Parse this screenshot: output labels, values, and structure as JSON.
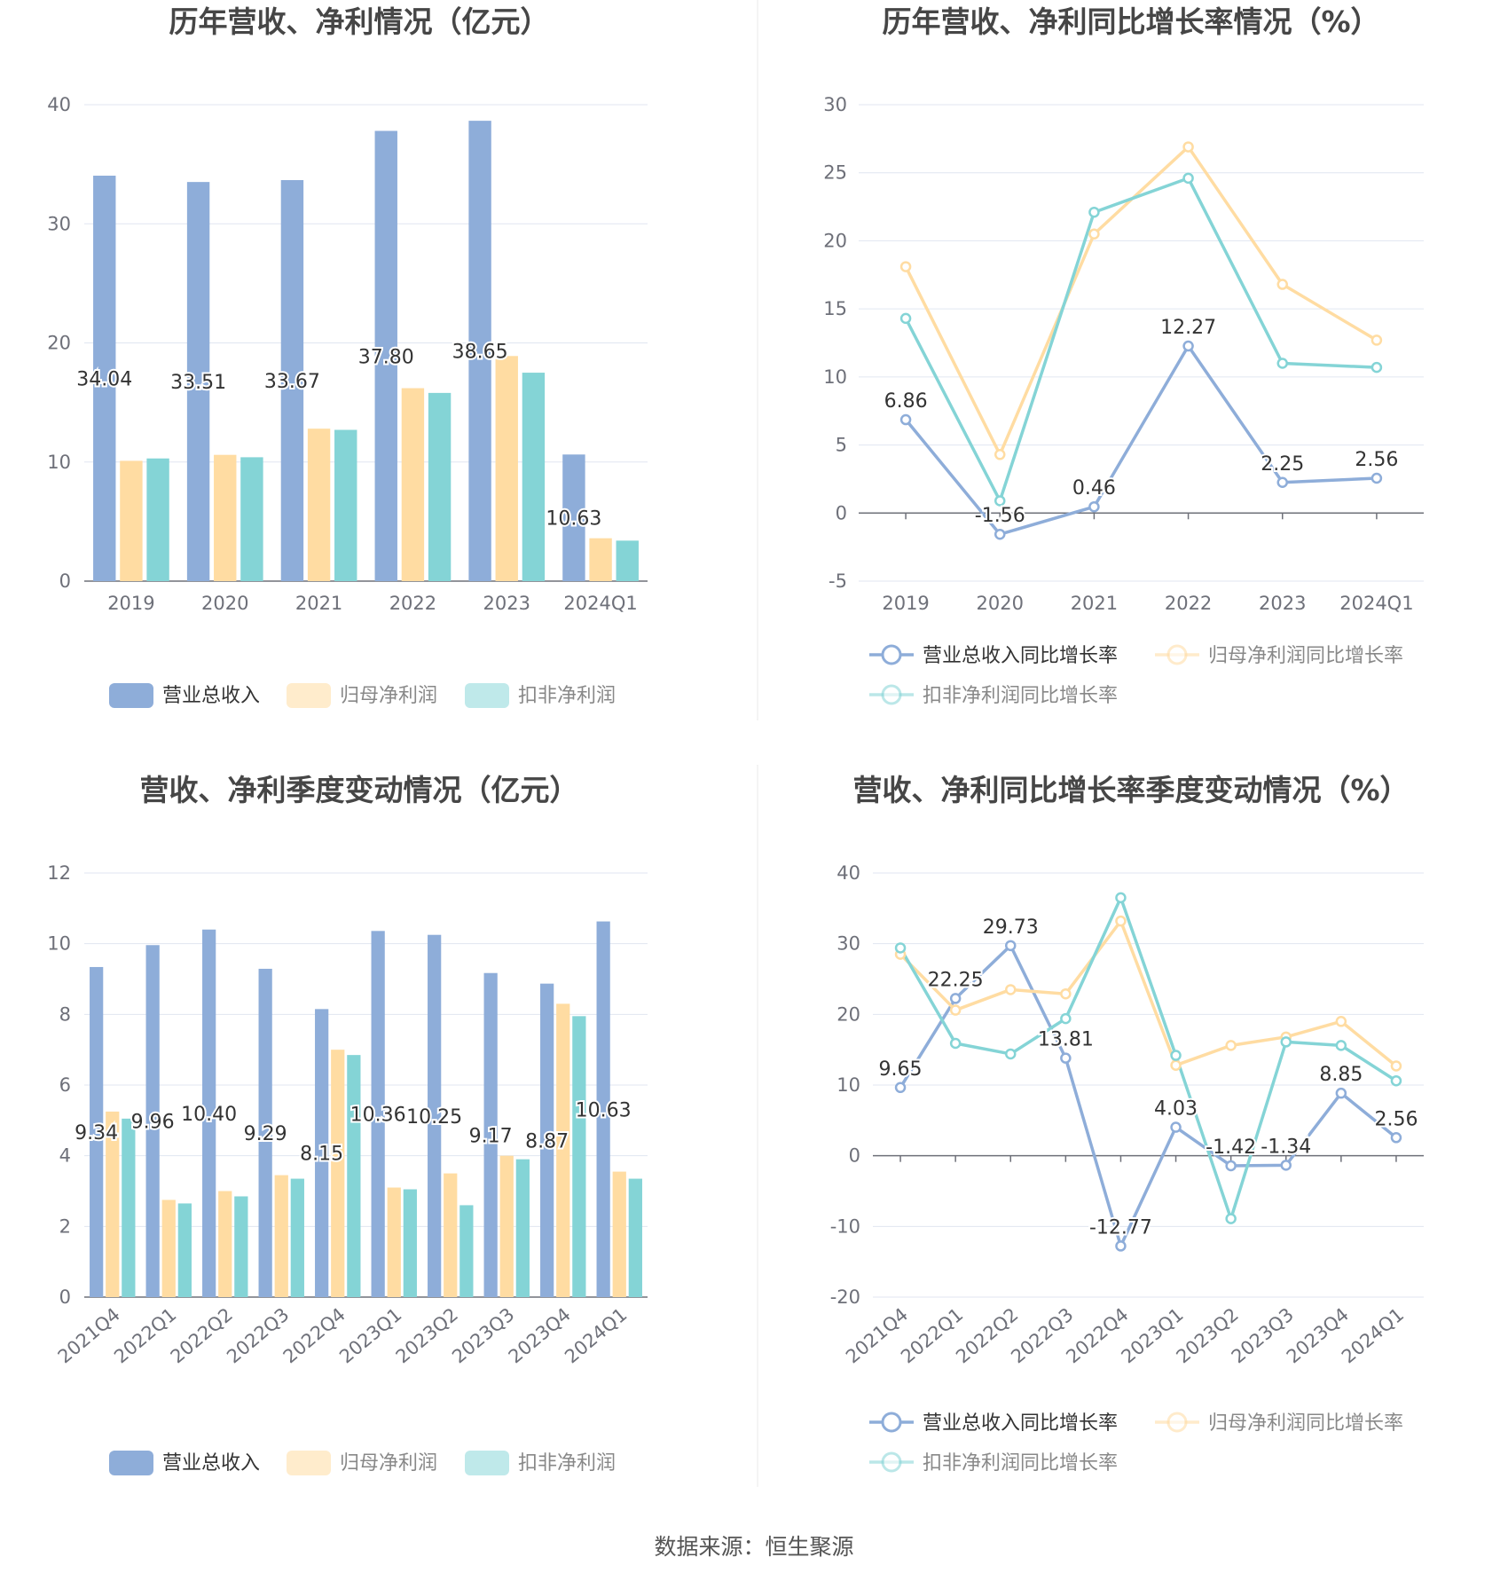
{
  "colors": {
    "revenue": "#8eadd9",
    "net_profit": "#ffdca2",
    "deducted_profit": "#84d4d6",
    "revenue_light": "#c7d8ee",
    "net_profit_light": "#ffeccc",
    "deducted_profit_light": "#bfe9ea"
  },
  "source": "数据来源：恒生聚源",
  "chart_data": [
    {
      "type": "bar",
      "title": "历年营收、净利情况（亿元）",
      "categories": [
        "2019",
        "2020",
        "2021",
        "2022",
        "2023",
        "2024Q1"
      ],
      "ylim": [
        0,
        40
      ],
      "yticks": [
        0,
        10,
        20,
        30,
        40
      ],
      "grid": true,
      "legend_position": "bottom",
      "series": [
        {
          "name": "营业总收入",
          "values": [
            34.04,
            33.51,
            33.67,
            37.8,
            38.65,
            10.63
          ],
          "labels": [
            "34.04",
            "33.51",
            "33.67",
            "37.80",
            "38.65",
            "10.63"
          ]
        },
        {
          "name": "归母净利润",
          "values": [
            10.1,
            10.6,
            12.8,
            16.2,
            18.9,
            3.6
          ]
        },
        {
          "name": "扣非净利润",
          "values": [
            10.3,
            10.4,
            12.7,
            15.8,
            17.5,
            3.4
          ]
        }
      ]
    },
    {
      "type": "line",
      "title": "历年营收、净利同比增长率情况（%）",
      "categories": [
        "2019",
        "2020",
        "2021",
        "2022",
        "2023",
        "2024Q1"
      ],
      "ylim": [
        -5,
        30
      ],
      "yticks": [
        -5,
        0,
        5,
        10,
        15,
        20,
        25,
        30
      ],
      "grid": true,
      "legend_position": "bottom",
      "series": [
        {
          "name": "营业总收入同比增长率",
          "values": [
            6.86,
            -1.56,
            0.46,
            12.27,
            2.25,
            2.56
          ],
          "labels": [
            "6.86",
            "-1.56",
            "0.46",
            "12.27",
            "2.25",
            "2.56"
          ]
        },
        {
          "name": "归母净利润同比增长率",
          "values": [
            18.1,
            4.3,
            20.5,
            26.9,
            16.8,
            12.7
          ]
        },
        {
          "name": "扣非净利润同比增长率",
          "values": [
            14.3,
            0.9,
            22.1,
            24.6,
            11.0,
            10.7
          ]
        }
      ]
    },
    {
      "type": "bar",
      "title": "营收、净利季度变动情况（亿元）",
      "categories": [
        "2021Q4",
        "2022Q1",
        "2022Q2",
        "2022Q3",
        "2022Q4",
        "2023Q1",
        "2023Q2",
        "2023Q3",
        "2023Q4",
        "2024Q1"
      ],
      "ylim": [
        0,
        12
      ],
      "yticks": [
        0,
        2,
        4,
        6,
        8,
        10,
        12
      ],
      "grid": true,
      "legend_position": "bottom",
      "series": [
        {
          "name": "营业总收入",
          "values": [
            9.34,
            9.96,
            10.4,
            9.29,
            8.15,
            10.36,
            10.25,
            9.17,
            8.87,
            10.63
          ],
          "labels": [
            "9.34",
            "9.96",
            "10.40",
            "9.29",
            "8.15",
            "10.36",
            "10.25",
            "9.17",
            "8.87",
            "10.63"
          ]
        },
        {
          "name": "归母净利润",
          "values": [
            5.25,
            2.75,
            3.0,
            3.45,
            7.0,
            3.1,
            3.5,
            4.0,
            8.3,
            3.55
          ]
        },
        {
          "name": "扣非净利润",
          "values": [
            5.05,
            2.65,
            2.85,
            3.35,
            6.85,
            3.05,
            2.6,
            3.9,
            7.95,
            3.35
          ]
        }
      ]
    },
    {
      "type": "line",
      "title": "营收、净利同比增长率季度变动情况（%）",
      "categories": [
        "2021Q4",
        "2022Q1",
        "2022Q2",
        "2022Q3",
        "2022Q4",
        "2023Q1",
        "2023Q2",
        "2023Q3",
        "2023Q4",
        "2024Q1"
      ],
      "ylim": [
        -20,
        40
      ],
      "yticks": [
        -20,
        -10,
        0,
        10,
        20,
        30,
        40
      ],
      "grid": true,
      "legend_position": "bottom",
      "series": [
        {
          "name": "营业总收入同比增长率",
          "values": [
            9.65,
            22.25,
            29.73,
            13.81,
            -12.77,
            4.03,
            -1.42,
            -1.34,
            8.85,
            2.56
          ],
          "labels": [
            "9.65",
            "22.25",
            "29.73",
            "13.81",
            "-12.77",
            "4.03",
            "-1.42",
            "-1.34",
            "8.85",
            "2.56"
          ]
        },
        {
          "name": "归母净利润同比增长率",
          "values": [
            28.5,
            20.6,
            23.5,
            22.9,
            33.2,
            12.8,
            15.6,
            16.8,
            19.0,
            12.7
          ]
        },
        {
          "name": "扣非净利润同比增长率",
          "values": [
            29.4,
            15.9,
            14.4,
            19.4,
            36.5,
            14.2,
            -8.9,
            16.1,
            15.6,
            10.6
          ]
        }
      ]
    }
  ]
}
